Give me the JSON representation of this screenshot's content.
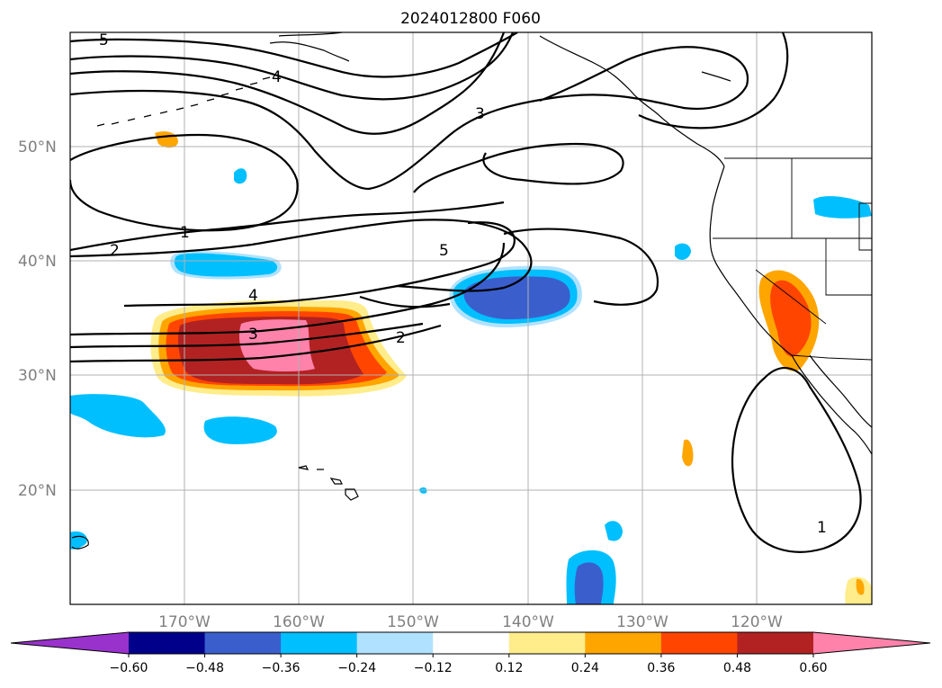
{
  "title": "2024012800 F060",
  "lat_labels": [
    "50°N",
    "40°N",
    "30°N",
    "20°N"
  ],
  "lon_labels": [
    "170°W",
    "160°W",
    "150°W",
    "140°W",
    "130°W",
    "120°W"
  ],
  "colorbar": {
    "tick_labels": [
      "−0.60",
      "−0.48",
      "−0.36",
      "−0.24",
      "−0.12",
      "0.12",
      "0.24",
      "0.36",
      "0.48",
      "0.60"
    ],
    "colors": [
      "#9932cc",
      "#00008b",
      "#3a5fcd",
      "#00bfff",
      "#b0e2ff",
      "#ffffff",
      "#ffec8b",
      "#ffa500",
      "#ff4500",
      "#b22222",
      "#ff82ab"
    ],
    "extend": "both"
  },
  "contour_labels": [
    "5",
    "4",
    "3",
    "1",
    "2",
    "5",
    "4",
    "3",
    "2",
    "1"
  ],
  "map": {
    "region": "North Pacific Ocean",
    "lon_range": [
      "180°W",
      "110°W"
    ],
    "lat_range": [
      "10°N",
      "60°N"
    ],
    "gridlines": true
  }
}
